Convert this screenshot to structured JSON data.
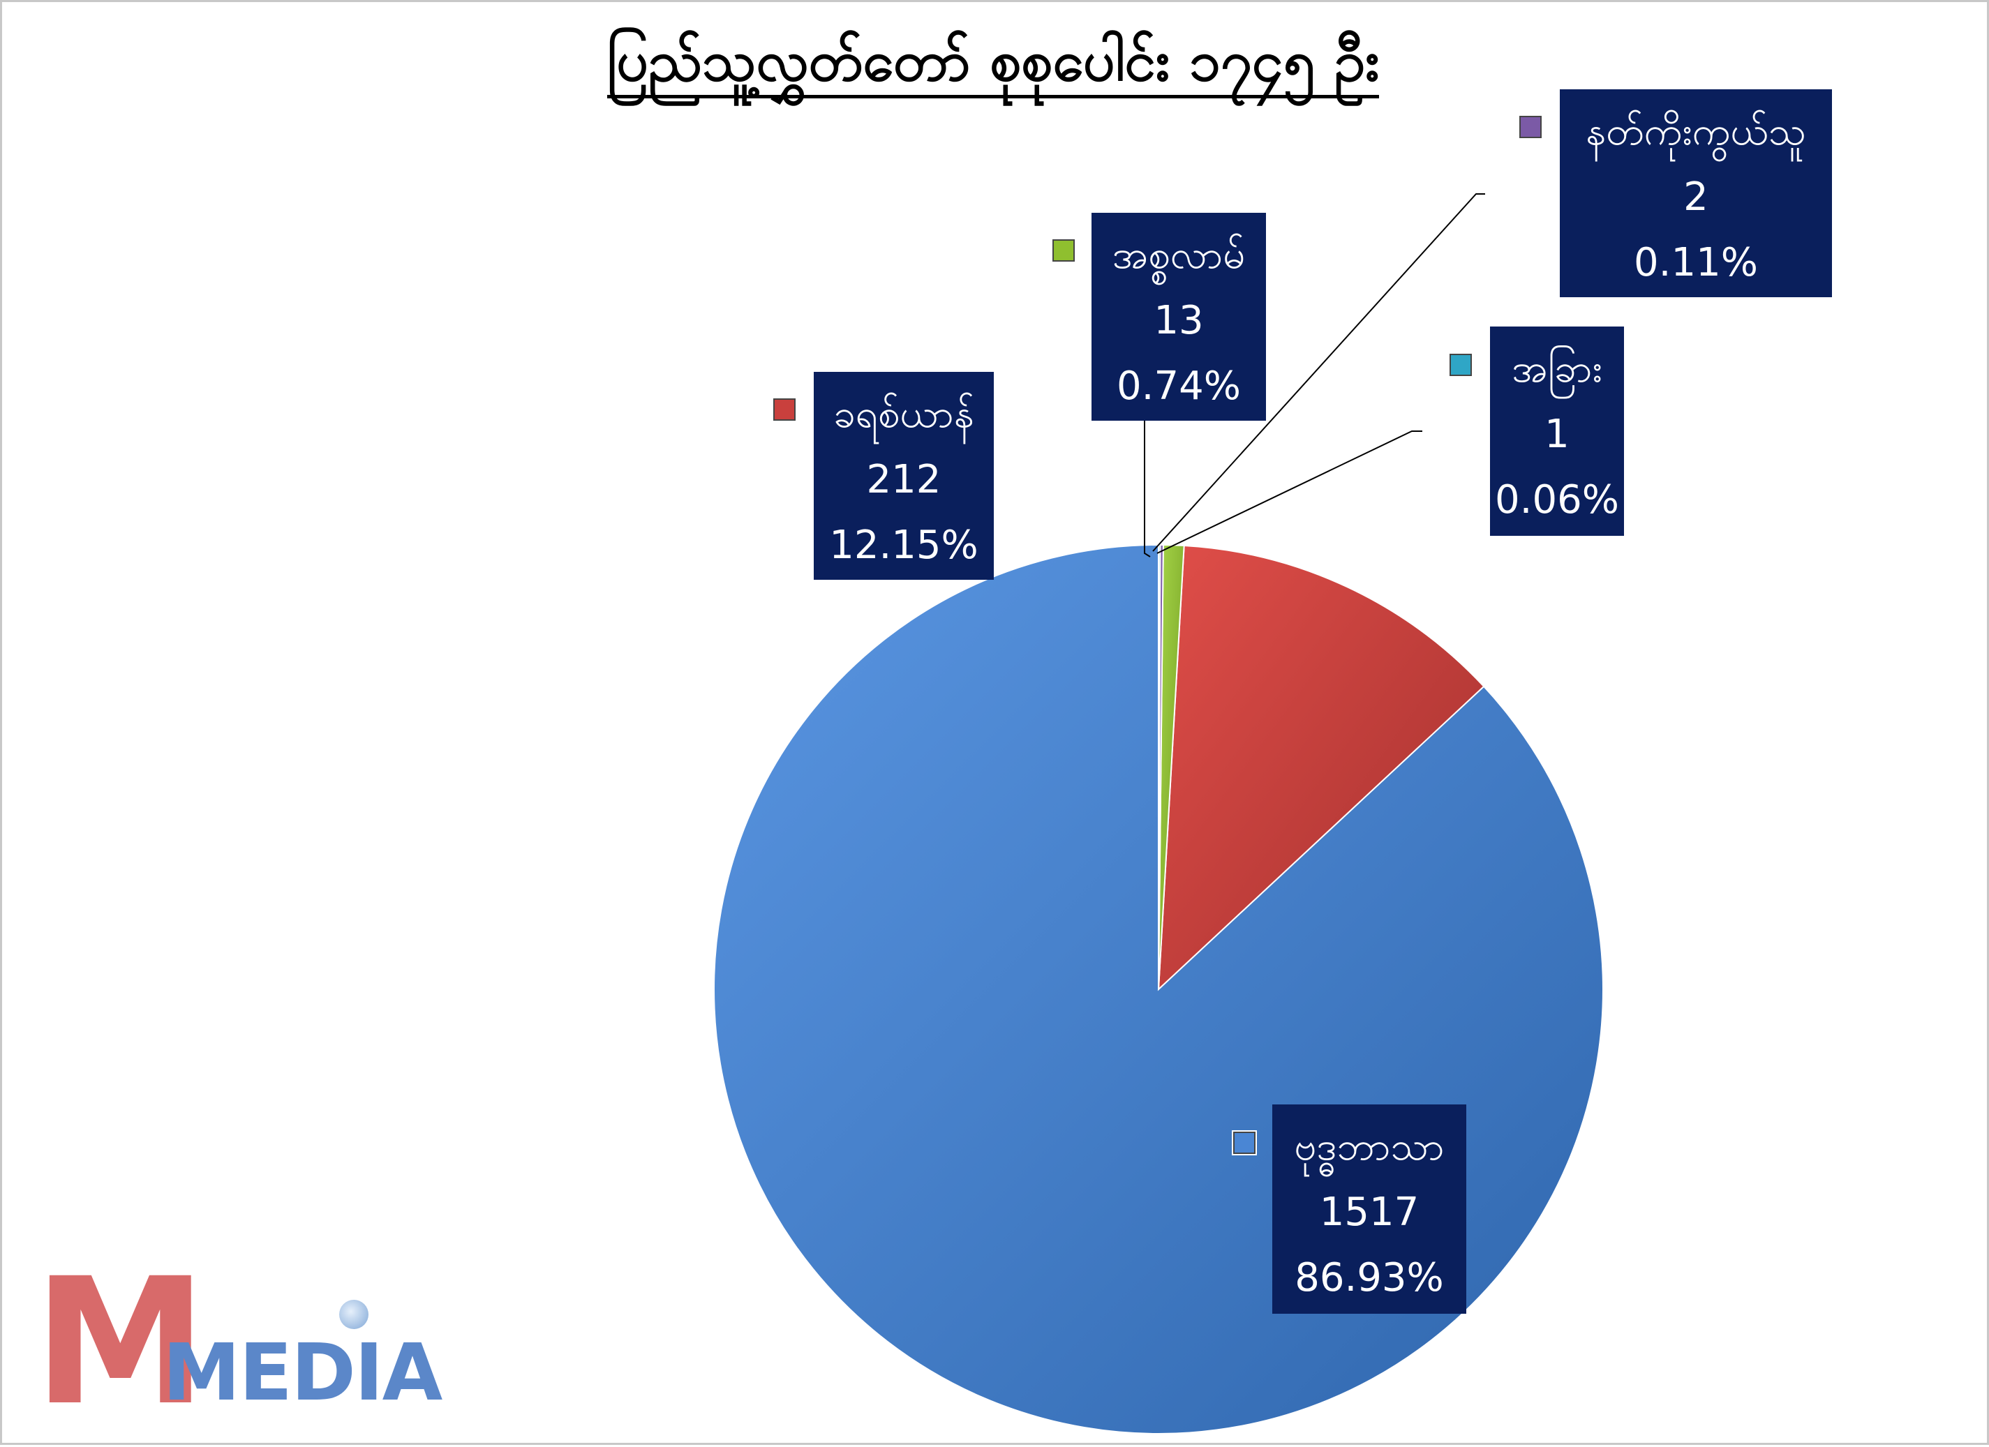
{
  "chart_data": {
    "type": "pie",
    "title": "ပြည်သူ့လွှတ်တော် စုစုပေါင်း ၁၇၄၅ ဦး",
    "slices": [
      {
        "label": "ဗုဒ္ဓဘာသာ",
        "value": 1517,
        "percent": "86.93%",
        "color": "#4a86d4"
      },
      {
        "label": "ခရစ်ယာန်",
        "value": 212,
        "percent": "12.15%",
        "color": "#c9403d"
      },
      {
        "label": "အစ္စလာမ်",
        "value": 13,
        "percent": "0.74%",
        "color": "#8fbf2f"
      },
      {
        "label": "နတ်ကိုးကွယ်သူ",
        "value": 2,
        "percent": "0.11%",
        "color": "#7b5aa6"
      },
      {
        "label": "အခြား",
        "value": 1,
        "percent": "0.06%",
        "color": "#2fa6c6"
      }
    ],
    "start_angle_deg": 90,
    "direction": "counterclockwise"
  },
  "colors": {
    "label_background": "#0a1f5c",
    "label_text": "#ffffff",
    "border": "#c8c8c8"
  },
  "logo": {
    "brand": "MMEDIA",
    "colors": [
      "#d86a6a",
      "#5b87c9"
    ]
  }
}
